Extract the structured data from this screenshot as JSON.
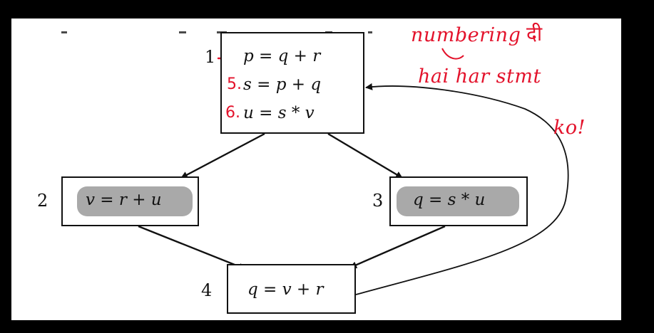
{
  "colors": {
    "ink": "#111111",
    "annotation": "#e3122b",
    "smudge": "#9a9a9a",
    "background": "#ffffff",
    "frame": "#000000"
  },
  "nodes": {
    "n1": {
      "label": "1",
      "statements": [
        "p = q + r",
        "s = p + q",
        "u = s * v"
      ],
      "annotated_numbers": [
        "5.",
        "6."
      ]
    },
    "n2": {
      "label": "2",
      "statement": "v = r + u"
    },
    "n3": {
      "label": "3",
      "statement": "q = s * u"
    },
    "n4": {
      "label": "4",
      "statement": "q = v + r"
    }
  },
  "edges": [
    {
      "from": "1",
      "to": "2"
    },
    {
      "from": "1",
      "to": "3"
    },
    {
      "from": "2",
      "to": "4"
    },
    {
      "from": "3",
      "to": "4"
    },
    {
      "from": "4",
      "to": "1"
    }
  ],
  "annotation": {
    "line1": "numbering",
    "line1_hindi": "दी",
    "line2": "hai har stmt",
    "line3": "ko!"
  }
}
